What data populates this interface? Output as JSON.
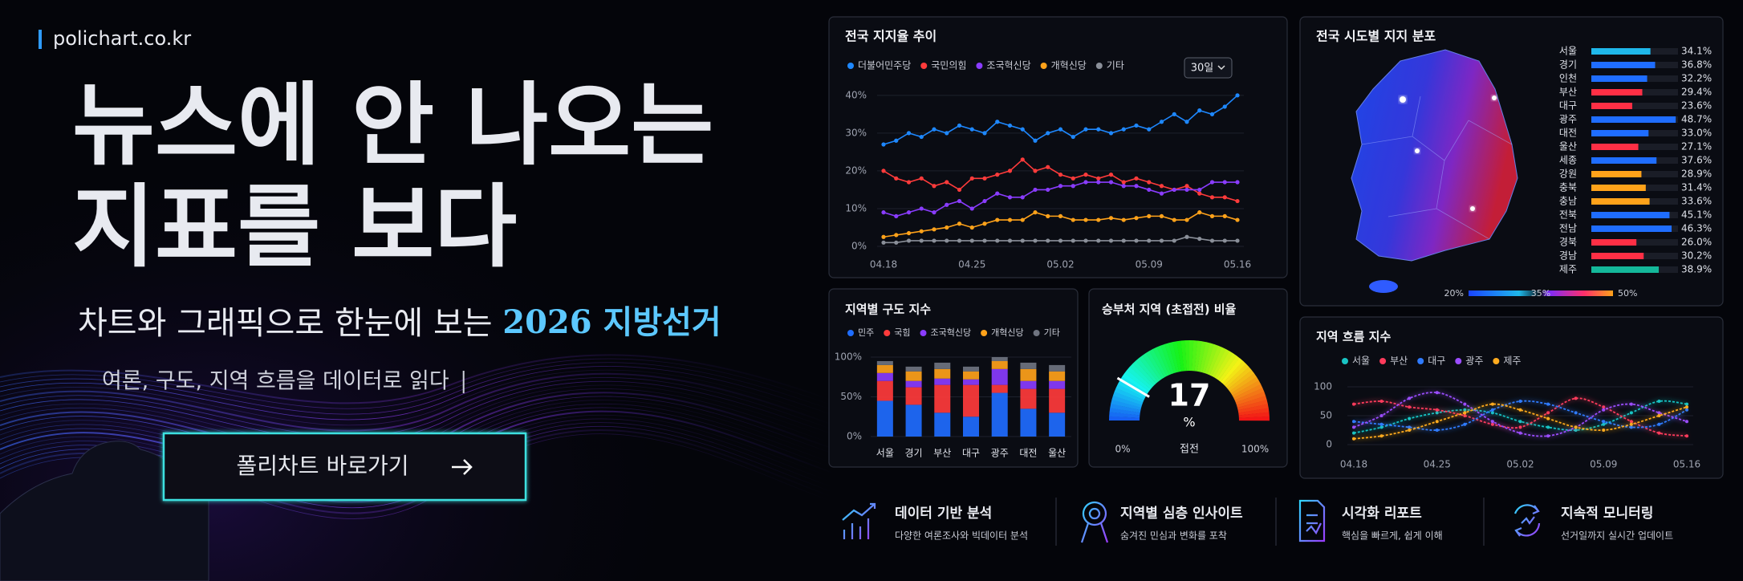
{
  "header": {
    "site": "polichart.co.kr",
    "headline": [
      "뉴스에 안 나오는",
      "지표를 보다"
    ],
    "subtitle": "차트와 그래픽으로 한눈에 보는",
    "highlight": "2026 지방선거",
    "tagline": "여론, 구도, 지역 흐름을 데이터로 읽다",
    "button": "폴리차트 바로가기"
  },
  "chart_data": [
    {
      "type": "line",
      "title": "전국 지지율 추이",
      "range_button": "30일",
      "categories": [
        "04.18",
        null,
        null,
        null,
        null,
        null,
        null,
        "04.25",
        null,
        null,
        null,
        null,
        null,
        null,
        "05.02",
        null,
        null,
        null,
        null,
        null,
        null,
        "05.09",
        null,
        null,
        null,
        null,
        null,
        null,
        "05.16"
      ],
      "series": [
        {
          "name": "더불어민주당",
          "color": "#1e88ff",
          "values": [
            27,
            28,
            30,
            29,
            31,
            30,
            32,
            31,
            30,
            33,
            32,
            31,
            28,
            30,
            31,
            29,
            31,
            31,
            30,
            31,
            32,
            31,
            33,
            35,
            33,
            36,
            35,
            37,
            40
          ]
        },
        {
          "name": "국민의힘",
          "color": "#ff3b3b",
          "values": [
            20,
            18,
            17,
            18,
            16,
            17,
            15,
            18,
            18,
            19,
            20,
            23,
            20,
            21,
            19,
            18,
            19,
            18,
            19,
            17,
            18,
            17,
            16,
            15,
            16,
            14,
            13,
            13,
            12
          ]
        },
        {
          "name": "조국혁신당",
          "color": "#8a3cff",
          "values": [
            9,
            8,
            9,
            10,
            9,
            11,
            12,
            10,
            12,
            14,
            13,
            13,
            15,
            15,
            16,
            16,
            17,
            17,
            17,
            16,
            16,
            15,
            14,
            15,
            15,
            15,
            17,
            17,
            17
          ]
        },
        {
          "name": "개혁신당",
          "color": "#ffa21a",
          "values": [
            2.5,
            3,
            3.5,
            4,
            4.5,
            5,
            6,
            5,
            6,
            7,
            7,
            7,
            9,
            8,
            8,
            7,
            7,
            7,
            7.5,
            7,
            7.5,
            8,
            8,
            7,
            7,
            9,
            8,
            8,
            7
          ]
        },
        {
          "name": "기타",
          "color": "#8a8f99",
          "values": [
            1,
            1,
            1.5,
            1.5,
            1.5,
            1.5,
            1.5,
            1.5,
            1.5,
            1.5,
            1.5,
            1.5,
            1.5,
            1.5,
            1.5,
            1.5,
            1.5,
            1.5,
            1.5,
            1.5,
            1.5,
            1.5,
            1.5,
            1.5,
            2.5,
            2,
            1.5,
            1.5,
            1.5
          ]
        }
      ],
      "ylim": [
        0,
        44
      ],
      "yticks": [
        {
          "value": 0,
          "label": "0%"
        },
        {
          "value": 10,
          "label": "10%"
        },
        {
          "value": 20,
          "label": "20%"
        },
        {
          "value": 30,
          "label": "30%"
        },
        {
          "value": 40,
          "label": "40%"
        }
      ],
      "grid": true,
      "legend": "top"
    },
    {
      "type": "hbar",
      "title": "전국 시도별 지지 분포",
      "categories": [
        "서울",
        "경기",
        "인천",
        "부산",
        "대구",
        "광주",
        "대전",
        "울산",
        "세종",
        "강원",
        "충북",
        "충남",
        "전북",
        "전남",
        "경북",
        "경남",
        "제주"
      ],
      "values": [
        34.1,
        36.8,
        32.2,
        29.4,
        23.6,
        48.7,
        33.0,
        27.1,
        37.6,
        28.9,
        31.4,
        33.6,
        45.1,
        46.3,
        26.0,
        30.2,
        38.9
      ],
      "value_labels": [
        "34.1%",
        "36.8%",
        "32.2%",
        "29.4%",
        "23.6%",
        "48.7%",
        "33.0%",
        "27.1%",
        "37.6%",
        "28.9%",
        "31.4%",
        "33.6%",
        "45.1%",
        "46.3%",
        "26.0%",
        "30.2%",
        "38.9%"
      ],
      "colors": [
        "#1fb8ea",
        "#1f6dff",
        "#1f6dff",
        "#ff2f45",
        "#ff2f45",
        "#1f6dff",
        "#1f6dff",
        "#ff2f45",
        "#1f6dff",
        "#ffa21a",
        "#ffa21a",
        "#ffa21a",
        "#1f6dff",
        "#1f6dff",
        "#ff2f45",
        "#ff2f45",
        "#14b89a"
      ],
      "xlim": [
        0,
        50
      ],
      "scale_ticks": [
        {
          "value": 20,
          "label": "20%"
        },
        {
          "value": 35,
          "label": "35%"
        },
        {
          "value": 50,
          "label": "50%"
        }
      ]
    },
    {
      "type": "stacked_bar",
      "title": "지역별 구도 지수",
      "categories": [
        "서울",
        "경기",
        "부산",
        "대구",
        "광주",
        "대전",
        "울산"
      ],
      "series": [
        {
          "name": "민주",
          "color": "#1f6dff",
          "values": [
            45,
            40,
            30,
            25,
            55,
            35,
            30
          ]
        },
        {
          "name": "국힘",
          "color": "#ff3b3b",
          "values": [
            25,
            22,
            35,
            40,
            10,
            25,
            30
          ]
        },
        {
          "name": "조국혁신당",
          "color": "#8a3cff",
          "values": [
            10,
            8,
            8,
            7,
            20,
            10,
            10
          ]
        },
        {
          "name": "개혁신당",
          "color": "#ffa21a",
          "values": [
            10,
            12,
            12,
            10,
            10,
            15,
            12
          ]
        },
        {
          "name": "기타",
          "color": "#6f7480",
          "values": [
            5,
            6,
            8,
            6,
            5,
            8,
            8
          ]
        }
      ],
      "ylim": [
        0,
        100
      ],
      "yticks": [
        {
          "value": 0,
          "label": "0%"
        },
        {
          "value": 50,
          "label": "50%"
        },
        {
          "value": 100,
          "label": "100%"
        }
      ],
      "legend": "top"
    },
    {
      "type": "gauge",
      "title": "승부처 지역 (초접전) 비율",
      "value": 17,
      "unit": "%",
      "label": "접전",
      "min": {
        "value": 0,
        "label": "0%"
      },
      "max": {
        "value": 100,
        "label": "100%"
      }
    },
    {
      "type": "line",
      "title": "지역 흐름 지수",
      "categories": [
        "04.18",
        null,
        null,
        "04.25",
        null,
        null,
        "05.02",
        null,
        null,
        "05.09",
        null,
        null,
        "05.16"
      ],
      "series": [
        {
          "name": "서울",
          "color": "#19c4c4",
          "values": [
            20,
            30,
            45,
            55,
            60,
            55,
            40,
            30,
            25,
            35,
            55,
            75,
            70
          ]
        },
        {
          "name": "부산",
          "color": "#ff3b5c",
          "values": [
            70,
            75,
            65,
            60,
            50,
            35,
            30,
            55,
            80,
            65,
            40,
            20,
            15
          ]
        },
        {
          "name": "대구",
          "color": "#2f7bff",
          "values": [
            40,
            35,
            30,
            25,
            35,
            60,
            75,
            70,
            55,
            40,
            30,
            35,
            60
          ]
        },
        {
          "name": "광주",
          "color": "#9b4dff",
          "values": [
            30,
            50,
            80,
            90,
            70,
            40,
            20,
            15,
            30,
            60,
            70,
            55,
            40
          ]
        },
        {
          "name": "제주",
          "color": "#ffab1f",
          "values": [
            10,
            15,
            25,
            40,
            55,
            70,
            60,
            45,
            30,
            25,
            35,
            50,
            65
          ]
        }
      ],
      "ylim": [
        0,
        110
      ],
      "yticks": [
        0,
        50,
        100
      ],
      "grid": true,
      "smooth": true,
      "legend": "top"
    }
  ],
  "features": [
    {
      "title": "데이터 기반 분석",
      "subtitle": "다양한 여론조사와 빅데이터 분석"
    },
    {
      "title": "지역별 심층 인사이트",
      "subtitle": "숨겨진 민심과 변화를 포착"
    },
    {
      "title": "시각화 리포트",
      "subtitle": "핵심을 빠르게, 쉽게 이해"
    },
    {
      "title": "지속적 모니터링",
      "subtitle": "선거일까지 실시간 업데이트"
    }
  ]
}
